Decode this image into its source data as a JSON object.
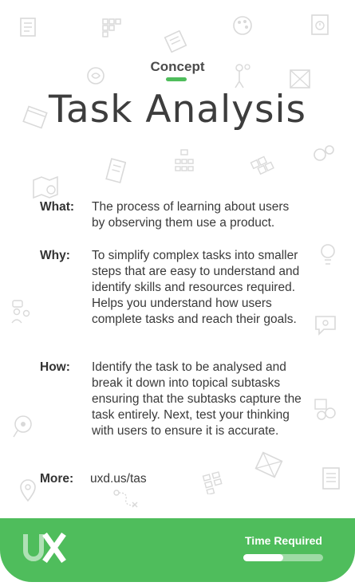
{
  "card": {
    "eyebrow": "Concept",
    "title": "Task Analysis",
    "rows": [
      {
        "label": "What:",
        "text": "The process of learning about users by observing them use a product."
      },
      {
        "label": "Why:",
        "text": "To simplify complex tasks into smaller steps that are easy to understand and identify skills and resources required.  Helps you understand how users complete tasks and reach their goals."
      },
      {
        "label": "How:",
        "text": "Identify the task to be analysed and break it down into topical subtasks ensuring that the subtasks capture the task entirely. Next, test your thinking with users to ensure it is accurate."
      },
      {
        "label": "More:",
        "text": "uxd.us/tas"
      }
    ]
  },
  "footer": {
    "logo_icon": "ux-logo-icon",
    "time_label": "Time Required",
    "time_required_fraction": 0.5
  },
  "colors": {
    "accent": "#4fbd5c",
    "text": "#3a3a3a",
    "footer_text": "#ffffff"
  }
}
